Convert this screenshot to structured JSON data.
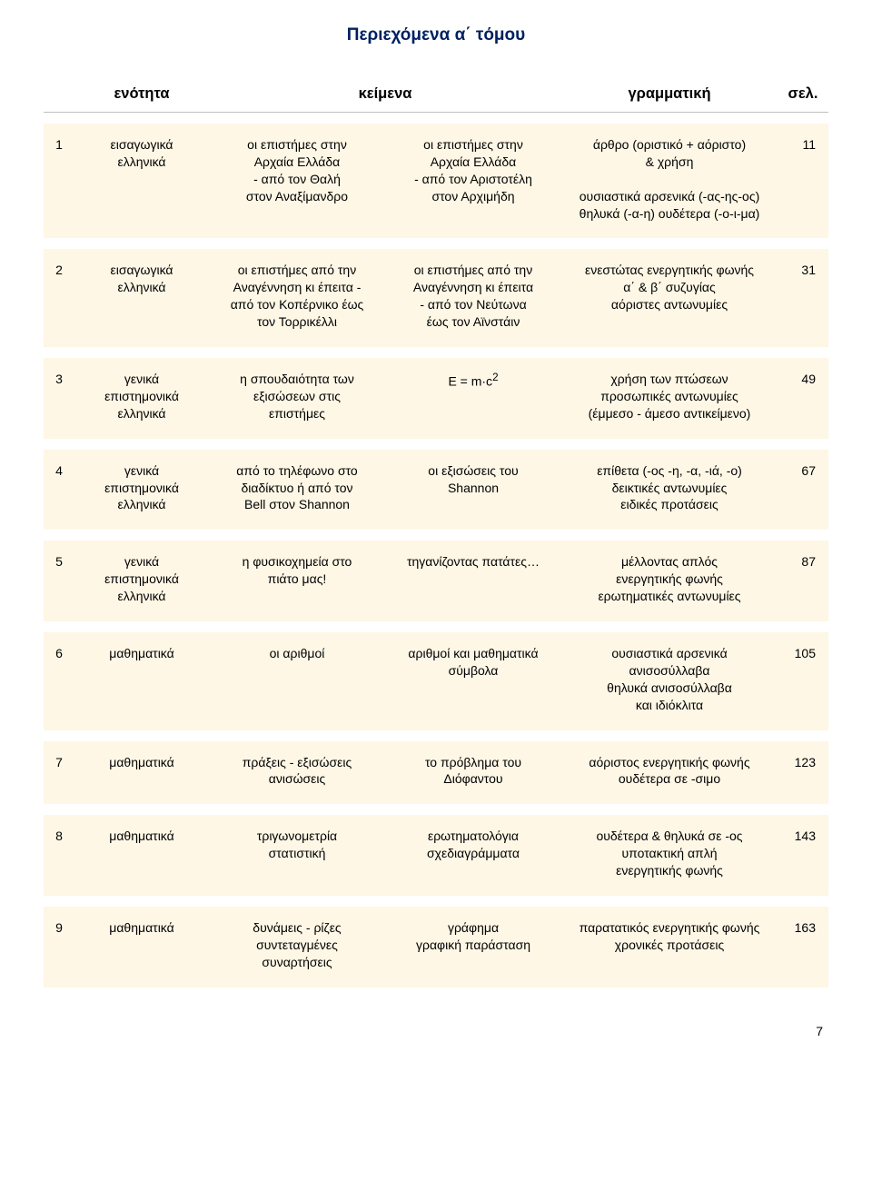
{
  "title": "Περιεχόμενα α΄ τόμου",
  "headers": {
    "unit": "ενότητα",
    "texts": "κείμενα",
    "grammar": "γραμματική",
    "page": "σελ."
  },
  "rows": [
    {
      "idx": "1",
      "unit": "εισαγωγικά\nελληνικά",
      "textsA": "οι επιστήμες στην\nΑρχαία Ελλάδα\n- από τον Θαλή\nστον Αναξίμανδρο",
      "textsB": "οι επιστήμες στην\nΑρχαία Ελλάδα\n- από τον Αριστοτέλη\nστον Αρχιμήδη",
      "grammar": "άρθρο (οριστικό + αόριστο)\n& χρήση\n\nουσιαστικά αρσενικά (-ας-ης-ος)\nθηλυκά (-α-η) ουδέτερα (-ο-ι-μα)",
      "page": "11"
    },
    {
      "idx": "2",
      "unit": "εισαγωγικά\nελληνικά",
      "textsA": "οι επιστήμες από την\nΑναγέννηση κι έπειτα -\nαπό τον Κοπέρνικο έως\nτον Τορρικέλλι",
      "textsB": "οι επιστήμες από την\nΑναγέννηση κι έπειτα\n- από τον Νεύτωνα\nέως τον Αϊνστάιν",
      "grammar": "ενεστώτας ενεργητικής φωνής\nα΄ & β΄ συζυγίας\nαόριστες αντωνυμίες",
      "page": "31"
    },
    {
      "idx": "3",
      "unit": "γενικά\nεπιστημονικά\nελληνικά",
      "textsA": "η σπουδαιότητα των\nεξισώσεων στις\nεπιστήμες",
      "textsB_html": "E = m·c<sup>2</sup>",
      "grammar": "χρήση των πτώσεων\nπροσωπικές αντωνυμίες\n(έμμεσο - άμεσο αντικείμενο)",
      "page": "49"
    },
    {
      "idx": "4",
      "unit": "γενικά\nεπιστημονικά\nελληνικά",
      "textsA": "από το τηλέφωνο στο\nδιαδίκτυο ή από τον\nBell στον Shannon",
      "textsB": "οι εξισώσεις του\nShannon",
      "grammar": "επίθετα (-ος -η, -α, -ιά, -ο)\nδεικτικές αντωνυμίες\nειδικές προτάσεις",
      "page": "67"
    },
    {
      "idx": "5",
      "unit": "γενικά\nεπιστημονικά\nελληνικά",
      "textsA": "η φυσικοχημεία στο\nπιάτο μας!",
      "textsB": "τηγανίζοντας πατάτες…",
      "grammar": "μέλλοντας απλός\nενεργητικής φωνής\nερωτηματικές αντωνυμίες",
      "page": "87"
    },
    {
      "idx": "6",
      "unit": "μαθηματικά",
      "textsA": "οι αριθμοί",
      "textsB": "αριθμοί και μαθηματικά\nσύμβολα",
      "grammar": "ουσιαστικά αρσενικά\nανισοσύλλαβα\nθηλυκά ανισοσύλλαβα\nκαι ιδιόκλιτα",
      "page": "105"
    },
    {
      "idx": "7",
      "unit": "μαθηματικά",
      "textsA": "πράξεις - εξισώσεις\nανισώσεις",
      "textsB": "το πρόβλημα του\nΔιόφαντου",
      "grammar": "αόριστος ενεργητικής φωνής\nουδέτερα σε -σιμο",
      "page": "123"
    },
    {
      "idx": "8",
      "unit": "μαθηματικά",
      "textsA": "τριγωνομετρία\nστατιστική",
      "textsB": "ερωτηματολόγια\nσχεδιαγράμματα",
      "grammar": "ουδέτερα & θηλυκά σε -ος\nυποτακτική απλή\nενεργητικής φωνής",
      "page": "143"
    },
    {
      "idx": "9",
      "unit": "μαθηματικά",
      "textsA": "δυνάμεις - ρίζες\nσυντεταγμένες\nσυναρτήσεις",
      "textsB": "γράφημα\nγραφική παράσταση",
      "grammar": "παρατατικός ενεργητικής φωνής\nχρονικές προτάσεις",
      "page": "163"
    }
  ],
  "footer_page": "7",
  "colors": {
    "row_bg": "#fef7e6",
    "title_color": "#002060",
    "page_bg": "#ffffff",
    "header_border": "#bfbfbf"
  }
}
